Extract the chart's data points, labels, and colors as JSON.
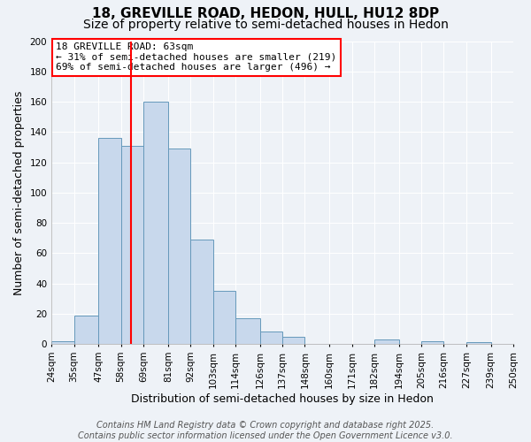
{
  "title": "18, GREVILLE ROAD, HEDON, HULL, HU12 8DP",
  "subtitle": "Size of property relative to semi-detached houses in Hedon",
  "xlabel": "Distribution of semi-detached houses by size in Hedon",
  "ylabel": "Number of semi-detached properties",
  "bin_labels": [
    "24sqm",
    "35sqm",
    "47sqm",
    "58sqm",
    "69sqm",
    "81sqm",
    "92sqm",
    "103sqm",
    "114sqm",
    "126sqm",
    "137sqm",
    "148sqm",
    "160sqm",
    "171sqm",
    "182sqm",
    "194sqm",
    "205sqm",
    "216sqm",
    "227sqm",
    "239sqm",
    "250sqm"
  ],
  "bin_edges": [
    24,
    35,
    47,
    58,
    69,
    81,
    92,
    103,
    114,
    126,
    137,
    148,
    160,
    171,
    182,
    194,
    205,
    216,
    227,
    239,
    250
  ],
  "bar_heights": [
    2,
    19,
    136,
    131,
    160,
    129,
    69,
    35,
    17,
    8,
    5,
    0,
    0,
    0,
    3,
    0,
    2,
    0,
    1,
    0,
    1
  ],
  "bar_color": "#c8d8ec",
  "bar_edge_color": "#6699bb",
  "vline_x": 63,
  "vline_color": "red",
  "annotation_line1": "18 GREVILLE ROAD: 63sqm",
  "annotation_line2": "← 31% of semi-detached houses are smaller (219)",
  "annotation_line3": "69% of semi-detached houses are larger (496) →",
  "box_edge_color": "red",
  "ylim": [
    0,
    200
  ],
  "yticks": [
    0,
    20,
    40,
    60,
    80,
    100,
    120,
    140,
    160,
    180,
    200
  ],
  "background_color": "#eef2f7",
  "grid_color": "#ffffff",
  "title_fontsize": 11,
  "subtitle_fontsize": 10,
  "axis_label_fontsize": 9,
  "tick_fontsize": 7.5,
  "annotation_fontsize": 8,
  "footer_fontsize": 7,
  "footer_line1": "Contains HM Land Registry data © Crown copyright and database right 2025.",
  "footer_line2": "Contains public sector information licensed under the Open Government Licence v3.0."
}
